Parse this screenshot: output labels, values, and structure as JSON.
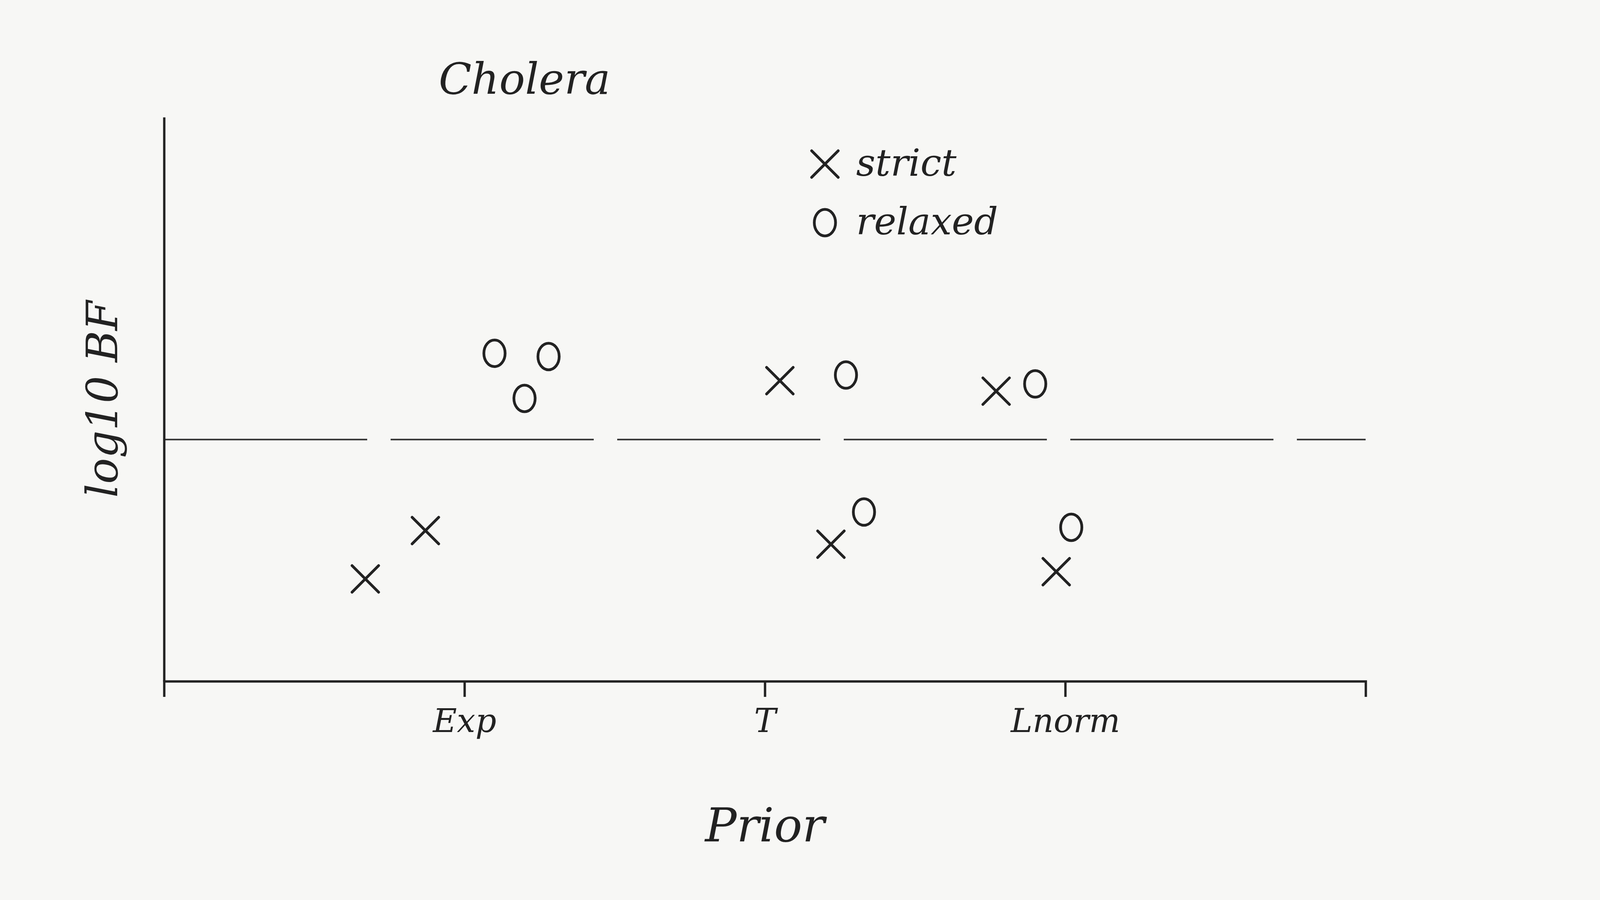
{
  "chart_data": {
    "type": "scatter",
    "title": "Cholera",
    "x_label": "Prior",
    "y_label": "log10 BF",
    "xlim": [
      0,
      4
    ],
    "xticks": [
      {
        "value": 1,
        "label": "Exp"
      },
      {
        "value": 2,
        "label": "T"
      },
      {
        "value": 3,
        "label": "Lnorm"
      }
    ],
    "ylim": [
      -3,
      4
    ],
    "yticks": [
      0
    ],
    "grid": true,
    "tick_labels": "x",
    "legend": "top-right",
    "series": [
      {
        "name": "strict",
        "marker": "x",
        "color": "#222222",
        "x": [
          0.67,
          0.87,
          2.05,
          2.22,
          2.77,
          2.97
        ],
        "values": [
          -1.73,
          -1.13,
          0.73,
          -1.3,
          0.6,
          -1.64
        ]
      },
      {
        "name": "relaxed",
        "marker": "o",
        "color": "#222222",
        "x": [
          1.1,
          1.28,
          1.2,
          2.27,
          2.33,
          2.9,
          3.02
        ],
        "values": [
          1.07,
          1.03,
          0.51,
          0.8,
          -0.9,
          0.69,
          -1.09
        ]
      }
    ]
  }
}
